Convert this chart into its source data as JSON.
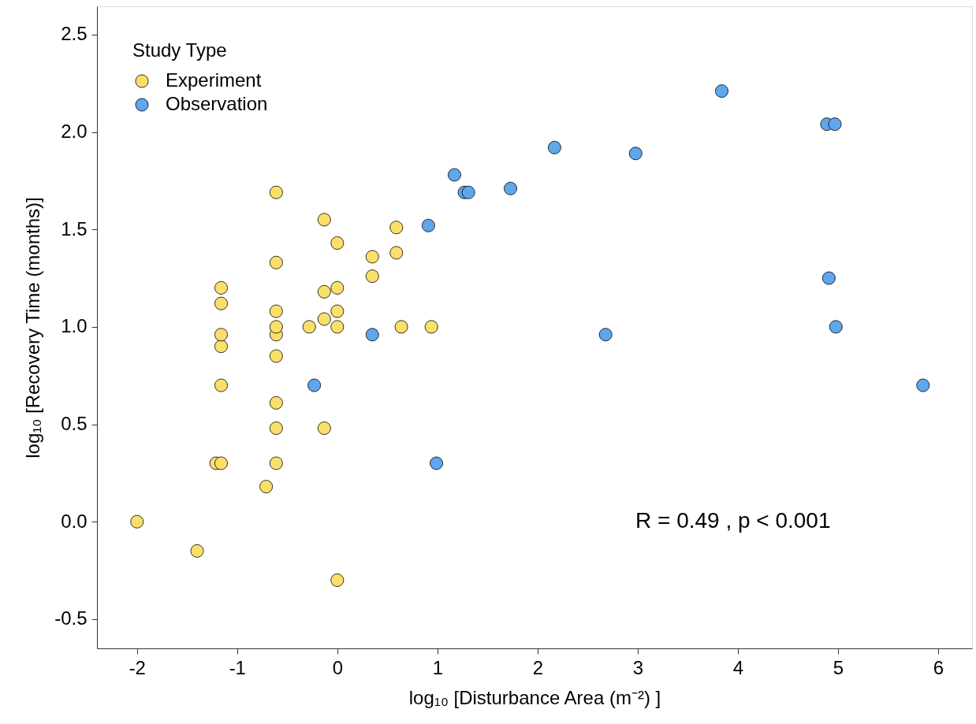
{
  "chart_data": {
    "type": "scatter",
    "xlabel": "log₁₀ [Disturbance Area (m⁻²) ]",
    "ylabel": "log₁₀ [Recovery Time (months)]",
    "legend_title": "Study Type",
    "legend": "top left",
    "grid": false,
    "marker": "circle",
    "xlim": [
      -2.4,
      6.34
    ],
    "ylim": [
      -0.65,
      2.645
    ],
    "xticks": [
      -2,
      -1,
      0,
      1,
      2,
      3,
      4,
      5,
      6
    ],
    "yticks": [
      {
        "value": -0.5,
        "label": "-0.5"
      },
      {
        "value": 0,
        "label": "0.0"
      },
      {
        "value": 0.5,
        "label": "0.5"
      },
      {
        "value": 1,
        "label": "1.0"
      },
      {
        "value": 1.5,
        "label": "1.5"
      },
      {
        "value": 2,
        "label": "2.0"
      },
      {
        "value": 2.5,
        "label": "2.5"
      }
    ],
    "annotations": [
      "R = 0.49 , p < 0.001"
    ],
    "series": [
      {
        "name": "Experiment",
        "color": "#fbdf6b",
        "x": [
          -2,
          -1.4,
          0,
          -0.71,
          -1.21,
          -1.16,
          -1.16,
          -1.16,
          -1.16,
          -1.16,
          -1.16,
          -0.61,
          -0.61,
          -0.61,
          -0.61,
          -0.61,
          -0.61,
          -0.61,
          -0.61,
          -0.61,
          -0.28,
          -0.13,
          -0.13,
          -0.13,
          -0.13,
          0,
          0,
          0,
          0,
          0.35,
          0.35,
          0.59,
          0.59,
          0.64,
          0.94
        ],
        "values": [
          0,
          -0.15,
          -0.3,
          0.18,
          0.3,
          0.3,
          0.7,
          0.9,
          0.96,
          1.12,
          1.2,
          0.3,
          0.48,
          0.61,
          0.85,
          0.96,
          1.0,
          1.08,
          1.33,
          1.69,
          1.0,
          0.48,
          1.04,
          1.18,
          1.55,
          1.0,
          1.08,
          1.2,
          1.43,
          1.26,
          1.36,
          1.38,
          1.51,
          1.0,
          1.0
        ]
      },
      {
        "name": "Observation",
        "color": "#5fa6ec",
        "x": [
          -0.23,
          0.35,
          0.99,
          0.91,
          1.17,
          1.27,
          1.31,
          1.73,
          2.17,
          2.68,
          2.98,
          3.84,
          4.89,
          4.97,
          4.91,
          4.98,
          5.85
        ],
        "values": [
          0.7,
          0.96,
          0.3,
          1.52,
          1.78,
          1.69,
          1.69,
          1.71,
          1.92,
          0.96,
          1.89,
          2.21,
          2.04,
          2.04,
          1.25,
          1.0,
          0.7
        ]
      }
    ]
  }
}
